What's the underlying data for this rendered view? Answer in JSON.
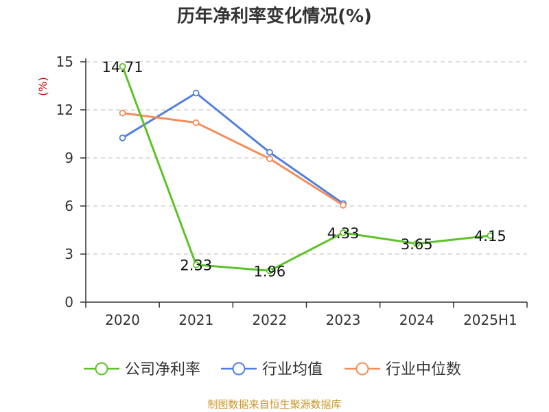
{
  "chart_data": {
    "type": "line",
    "title": "历年净利率变化情况(%)",
    "ylabel": "(%)",
    "categories": [
      "2020",
      "2021",
      "2022",
      "2023",
      "2024",
      "2025H1"
    ],
    "ylim": [
      0,
      15
    ],
    "yticks": [
      "0",
      "3",
      "6",
      "9",
      "12",
      "15"
    ],
    "grid": true,
    "legend_position": "bottom",
    "series": [
      {
        "name": "公司净利率",
        "color": "#5bc227",
        "values": [
          14.71,
          2.33,
          1.96,
          4.33,
          3.65,
          4.15
        ],
        "labels": [
          "14.71",
          "2.33",
          "1.96",
          "4.33",
          "3.65",
          "4.15"
        ]
      },
      {
        "name": "行业均值",
        "color": "#4f7fe0",
        "values": [
          10.25,
          13.05,
          9.35,
          6.15,
          null,
          null
        ]
      },
      {
        "name": "行业中位数",
        "color": "#f58c5a",
        "values": [
          11.8,
          11.2,
          8.95,
          6.05,
          null,
          null
        ]
      }
    ]
  },
  "colors": {
    "ylabel": "#cc0000",
    "source": "#c8962a",
    "axis": "#333333",
    "grid": "#bbbbbb"
  },
  "source": "制图数据来自恒生聚源数据库"
}
